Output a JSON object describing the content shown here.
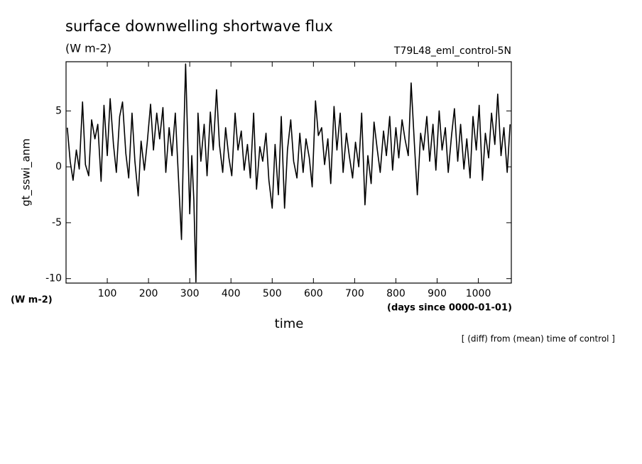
{
  "chart_data": {
    "type": "line",
    "title": "surface downwelling shortwave flux",
    "subtitle": "(W m-2)",
    "run_label": "T79L48_eml_control-5N",
    "y_label": "gt_sswi_anm",
    "y_unit": "(W m-2)",
    "x_unit": "(days since 0000-01-01)",
    "x_label": "time",
    "note": "[ (diff) from (mean) time of control ]",
    "color": "#000000",
    "xlim": [
      0,
      1080
    ],
    "ylim": [
      -10.4,
      9.4
    ],
    "xticks": [
      100,
      200,
      300,
      400,
      500,
      600,
      700,
      800,
      900,
      1000
    ],
    "yticks": [
      -10,
      -5,
      0,
      5
    ],
    "x": [
      3,
      10,
      17,
      25,
      32,
      40,
      47,
      55,
      62,
      70,
      77,
      85,
      92,
      100,
      107,
      115,
      122,
      130,
      137,
      145,
      152,
      160,
      167,
      175,
      182,
      190,
      197,
      205,
      212,
      220,
      227,
      235,
      242,
      250,
      257,
      265,
      272,
      280,
      285,
      290,
      295,
      300,
      305,
      310,
      315,
      320,
      327,
      335,
      342,
      350,
      357,
      365,
      372,
      380,
      387,
      395,
      402,
      410,
      417,
      425,
      432,
      440,
      447,
      455,
      462,
      470,
      477,
      485,
      492,
      500,
      507,
      515,
      522,
      530,
      537,
      545,
      552,
      560,
      567,
      575,
      582,
      590,
      597,
      605,
      612,
      620,
      627,
      635,
      642,
      650,
      657,
      665,
      672,
      680,
      687,
      695,
      702,
      710,
      717,
      725,
      732,
      740,
      747,
      755,
      762,
      770,
      777,
      785,
      792,
      800,
      807,
      815,
      822,
      830,
      837,
      845,
      852,
      860,
      867,
      875,
      882,
      890,
      897,
      905,
      912,
      920,
      927,
      935,
      942,
      950,
      957,
      965,
      972,
      980,
      987,
      995,
      1002,
      1010,
      1017,
      1025,
      1032,
      1040,
      1047,
      1055,
      1062,
      1070,
      1077
    ],
    "values": [
      3.5,
      0.5,
      -1.2,
      1.5,
      -0.2,
      5.8,
      0.2,
      -0.8,
      4.2,
      2.5,
      3.8,
      -1.3,
      5.5,
      1.0,
      6.1,
      2.0,
      -0.5,
      4.5,
      5.8,
      1.2,
      -1.0,
      4.8,
      0.5,
      -2.6,
      2.3,
      -0.3,
      2.2,
      5.6,
      1.5,
      4.8,
      2.5,
      5.3,
      -0.5,
      3.5,
      1.0,
      4.8,
      -0.5,
      -6.5,
      2.0,
      9.2,
      2.5,
      -4.2,
      1.0,
      -3.0,
      -10.3,
      4.8,
      0.5,
      3.8,
      -0.8,
      4.9,
      1.5,
      6.9,
      2.0,
      -0.5,
      3.5,
      0.8,
      -0.8,
      4.8,
      1.5,
      3.2,
      -0.3,
      2.0,
      -1.0,
      4.8,
      -2.0,
      1.8,
      0.5,
      3.0,
      -1.2,
      -3.7,
      2.0,
      -2.5,
      4.5,
      -3.7,
      1.5,
      4.2,
      0.5,
      -1.0,
      3.0,
      -0.5,
      2.5,
      0.8,
      -1.8,
      5.9,
      2.8,
      3.5,
      0.2,
      2.5,
      -1.5,
      5.4,
      1.5,
      4.8,
      -0.5,
      3.0,
      1.0,
      -1.0,
      2.2,
      0.0,
      4.8,
      -3.4,
      1.0,
      -1.5,
      4.0,
      1.5,
      -0.5,
      3.2,
      1.0,
      4.5,
      -0.3,
      3.5,
      0.8,
      4.2,
      2.5,
      1.0,
      7.5,
      2.0,
      -2.5,
      3.0,
      1.5,
      4.5,
      0.5,
      3.8,
      -0.3,
      5.0,
      1.5,
      3.5,
      -0.5,
      2.8,
      5.2,
      0.5,
      3.8,
      -0.2,
      2.5,
      -1.0,
      4.5,
      1.5,
      5.5,
      -1.2,
      3.0,
      0.8,
      4.8,
      2.0,
      6.5,
      1.0,
      3.5,
      -0.5,
      3.8
    ]
  }
}
